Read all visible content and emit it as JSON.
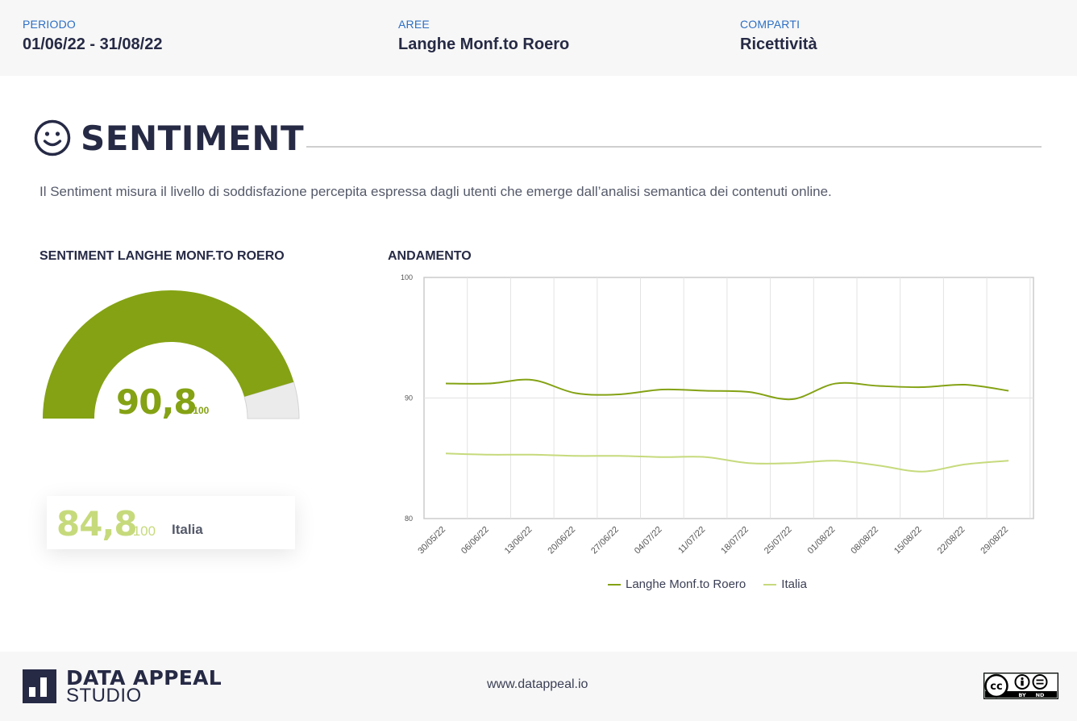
{
  "filters": [
    {
      "label": "PERIODO",
      "value": "01/06/22 - 31/08/22"
    },
    {
      "label": "AREE",
      "value": "Langhe Monf.to Roero"
    },
    {
      "label": "COMPARTI",
      "value": "Ricettività"
    }
  ],
  "section": {
    "title": "SENTIMENT",
    "icon": "smiley-icon",
    "description": "Il Sentiment misura il livello di soddisfazione percepita espressa dagli utenti che emerge dall’analisi semantica dei contenuti online."
  },
  "gauge": {
    "heading": "SENTIMENT LANGHE MONF.TO ROERO",
    "value_text": "90,8",
    "unit": "/100",
    "value": 90.8,
    "max": 100,
    "fill_color": "#84a214",
    "track_color": "#ebebeb"
  },
  "comparison": {
    "value_text": "84,8",
    "unit": "/100",
    "label": "Italia",
    "color": "#c6da7c"
  },
  "chart_heading": "ANDAMENTO",
  "chart_data": {
    "type": "line",
    "categories": [
      "30/05/22",
      "06/06/22",
      "13/06/22",
      "20/06/22",
      "27/06/22",
      "04/07/22",
      "11/07/22",
      "18/07/22",
      "25/07/22",
      "01/08/22",
      "08/08/22",
      "15/08/22",
      "22/08/22",
      "29/08/22"
    ],
    "ylim": [
      80,
      100
    ],
    "yticks": [
      80,
      90,
      100
    ],
    "grid": true,
    "legend_position": "bottom",
    "series": [
      {
        "name": "Langhe Monf.to Roero",
        "color": "#84a214",
        "values": [
          91.2,
          91.2,
          91.5,
          90.4,
          90.3,
          90.7,
          90.6,
          90.5,
          89.9,
          91.2,
          91.0,
          90.9,
          91.1,
          90.6
        ]
      },
      {
        "name": "Italia",
        "color": "#c6da7c",
        "values": [
          85.4,
          85.3,
          85.3,
          85.2,
          85.2,
          85.1,
          85.1,
          84.6,
          84.6,
          84.8,
          84.4,
          83.9,
          84.5,
          84.8
        ]
      }
    ]
  },
  "footer": {
    "logo_line1": "DATA APPEAL",
    "logo_line2": "STUDIO",
    "website": "www.datappeal.io",
    "license_icon": "cc-by-nd-badge-icon",
    "license_sub1": "BY",
    "license_sub2": "ND"
  }
}
